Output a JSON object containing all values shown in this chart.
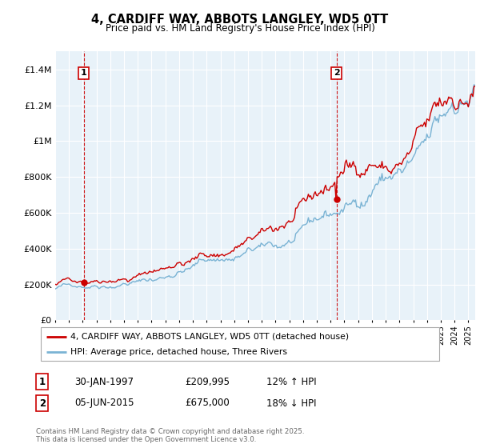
{
  "title": "4, CARDIFF WAY, ABBOTS LANGLEY, WD5 0TT",
  "subtitle": "Price paid vs. HM Land Registry's House Price Index (HPI)",
  "xlim_year": [
    1995.0,
    2025.5
  ],
  "ylim": [
    0,
    1500000
  ],
  "yticks": [
    0,
    200000,
    400000,
    600000,
    800000,
    1000000,
    1200000,
    1400000
  ],
  "ytick_labels": [
    "£0",
    "£200K",
    "£400K",
    "£600K",
    "£800K",
    "£1M",
    "£1.2M",
    "£1.4M"
  ],
  "sale1_year": 1997.08,
  "sale1_price": 209995,
  "sale1_label": "1",
  "sale2_year": 2015.43,
  "sale2_price": 675000,
  "sale2_label": "2",
  "legend_line1": "4, CARDIFF WAY, ABBOTS LANGLEY, WD5 0TT (detached house)",
  "legend_line2": "HPI: Average price, detached house, Three Rivers",
  "annotation1_date": "30-JAN-1997",
  "annotation1_price": "£209,995",
  "annotation1_hpi": "12% ↑ HPI",
  "annotation2_date": "05-JUN-2015",
  "annotation2_price": "£675,000",
  "annotation2_hpi": "18% ↓ HPI",
  "footer": "Contains HM Land Registry data © Crown copyright and database right 2025.\nThis data is licensed under the Open Government Licence v3.0.",
  "property_color": "#cc0000",
  "hpi_color": "#7ab3d4",
  "plot_bg_color": "#e8f2f9",
  "background_color": "#ffffff",
  "grid_color": "#ffffff"
}
